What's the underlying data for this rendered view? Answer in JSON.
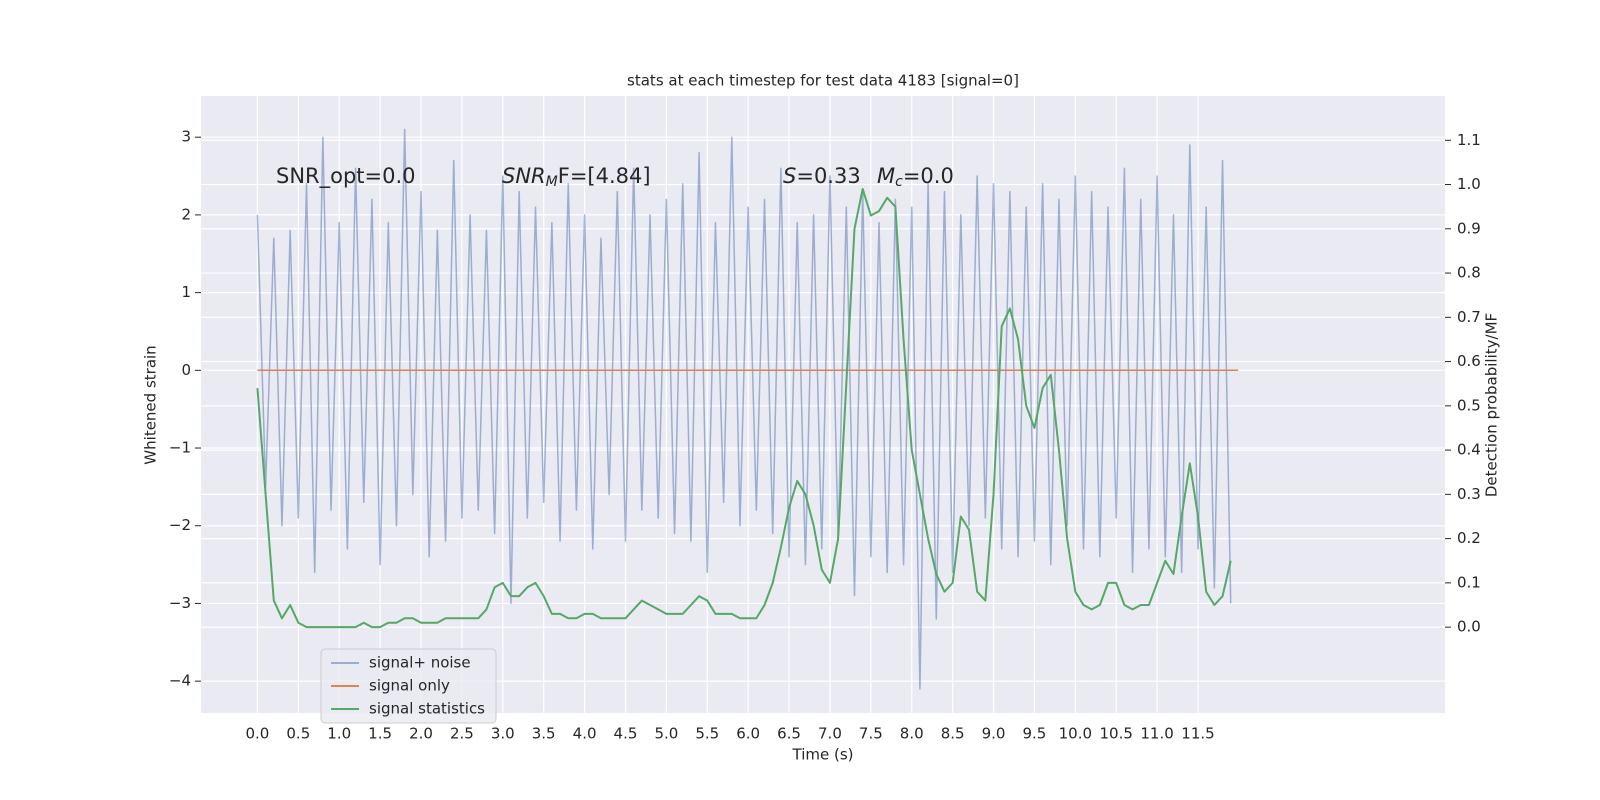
{
  "chart_data": {
    "type": "line",
    "title": "stats at each timestep for test data 4183 [signal=0]",
    "xlabel": "Time (s)",
    "ylabel": "Whitened strain",
    "y2label": "Detection probability/MF",
    "background": "#eaeaf2",
    "grid": true,
    "legend": "lower left",
    "xlim": [
      -0.69,
      14.52
    ],
    "ylim": [
      -4.41,
      3.53
    ],
    "y2lim": [
      -0.194,
      1.2
    ],
    "xticks": [
      {
        "value": 0,
        "label": "0.0"
      },
      0.5,
      {
        "value": 1,
        "label": "1.0"
      },
      1.5,
      {
        "value": 2,
        "label": "2.0"
      },
      2.5,
      {
        "value": 3,
        "label": "3.0"
      },
      3.5,
      {
        "value": 4,
        "label": "4.0"
      },
      4.5,
      {
        "value": 5,
        "label": "5.0"
      },
      5.5,
      {
        "value": 6,
        "label": "6.0"
      },
      6.5,
      {
        "value": 7,
        "label": "7.0"
      },
      7.5,
      {
        "value": 8,
        "label": "8.0"
      },
      8.5,
      {
        "value": 9,
        "label": "9.0"
      },
      9.5,
      {
        "value": 10,
        "label": "10.0"
      },
      10.5,
      {
        "value": 11,
        "label": "11.0"
      },
      11.5
    ],
    "yticks": [
      {
        "value": -4,
        "label": "−4"
      },
      {
        "value": -3,
        "label": "−3"
      },
      {
        "value": -2,
        "label": "−2"
      },
      {
        "value": -1,
        "label": "−1"
      },
      0,
      1,
      2,
      3
    ],
    "y2ticks": [
      {
        "value": 0,
        "label": "0.0"
      },
      0.1,
      0.2,
      0.3,
      0.4,
      0.5,
      0.6,
      0.7,
      0.8,
      0.9,
      {
        "value": 1,
        "label": "1.0"
      },
      1.1
    ],
    "annotations": [
      {
        "parts": [
          {
            "text": "SNR_opt=0.0"
          }
        ]
      },
      {
        "parts": [
          {
            "text": "SNR",
            "italic": true
          },
          {
            "text": "M",
            "italic": true,
            "sub": true
          },
          {
            "text": "F=[4.84]"
          }
        ]
      },
      {
        "parts": [
          {
            "text": "S",
            "italic": true
          },
          {
            "text": "=0.33"
          }
        ]
      },
      {
        "parts": [
          {
            "text": "M",
            "italic": true
          },
          {
            "text": "c",
            "italic": true,
            "sub": true
          },
          {
            "text": "=0.0"
          }
        ]
      }
    ],
    "x": [
      0.0,
      0.1,
      0.2,
      0.3,
      0.4,
      0.5,
      0.6,
      0.7,
      0.8,
      0.9,
      1.0,
      1.1,
      1.2,
      1.3,
      1.4,
      1.5,
      1.6,
      1.7,
      1.8,
      1.9,
      2.0,
      2.1,
      2.2,
      2.3,
      2.4,
      2.5,
      2.6,
      2.7,
      2.8,
      2.9,
      3.0,
      3.1,
      3.2,
      3.3,
      3.4,
      3.5,
      3.6,
      3.7,
      3.8,
      3.9,
      4.0,
      4.1,
      4.2,
      4.3,
      4.4,
      4.5,
      4.6,
      4.7,
      4.8,
      4.9,
      5.0,
      5.1,
      5.2,
      5.3,
      5.4,
      5.5,
      5.6,
      5.7,
      5.8,
      5.9,
      6.0,
      6.1,
      6.2,
      6.3,
      6.4,
      6.5,
      6.6,
      6.7,
      6.8,
      6.9,
      7.0,
      7.1,
      7.2,
      7.3,
      7.4,
      7.5,
      7.6,
      7.7,
      7.8,
      7.9,
      8.0,
      8.1,
      8.2,
      8.3,
      8.4,
      8.5,
      8.6,
      8.7,
      8.8,
      8.9,
      9.0,
      9.1,
      9.2,
      9.3,
      9.4,
      9.5,
      9.6,
      9.7,
      9.8,
      9.9,
      10.0,
      10.1,
      10.2,
      10.3,
      10.4,
      10.5,
      10.6,
      10.7,
      10.8,
      10.9,
      11.0,
      11.1,
      11.2,
      11.3,
      11.4,
      11.5,
      11.6,
      11.7,
      11.8,
      11.9
    ],
    "series": [
      {
        "name": "signal+ noise",
        "color": "#4c72b0",
        "alpha": 0.5,
        "values": [
          2.0,
          -1.5,
          1.7,
          -2.0,
          1.8,
          -1.9,
          2.4,
          -2.6,
          3.0,
          -1.8,
          1.9,
          -2.3,
          2.6,
          -1.7,
          2.2,
          -2.5,
          1.9,
          -2.0,
          3.1,
          -1.6,
          2.3,
          -2.4,
          1.8,
          -2.2,
          2.7,
          -1.9,
          2.0,
          -1.8,
          1.8,
          -2.1,
          2.5,
          -3.0,
          2.3,
          -1.9,
          2.1,
          -1.7,
          1.9,
          -2.2,
          2.4,
          -1.8,
          2.0,
          -2.3,
          1.7,
          -1.6,
          2.3,
          -2.2,
          2.6,
          -1.8,
          2.0,
          -1.9,
          2.2,
          -2.1,
          2.4,
          -2.2,
          2.8,
          -2.6,
          1.9,
          -1.7,
          3.0,
          -2.0,
          2.1,
          -1.8,
          2.2,
          -2.1,
          2.6,
          -2.4,
          1.9,
          -2.5,
          2.0,
          -2.3,
          2.5,
          -2.2,
          2.1,
          -2.9,
          2.3,
          -2.4,
          1.9,
          -2.6,
          2.2,
          -2.5,
          2.1,
          -4.1,
          2.4,
          -3.2,
          2.3,
          -2.6,
          2.0,
          -2.0,
          2.5,
          -1.9,
          2.4,
          -2.3,
          2.3,
          -2.4,
          2.1,
          -2.2,
          2.4,
          -2.5,
          2.2,
          -2.0,
          2.5,
          -2.3,
          2.3,
          -2.4,
          2.1,
          -1.9,
          2.6,
          -2.6,
          2.2,
          -2.3,
          2.5,
          -2.4,
          2.0,
          -2.6,
          2.9,
          -2.3,
          2.1,
          -2.8,
          2.7,
          -3.0
        ]
      },
      {
        "name": "signal only",
        "color": "#dd8452",
        "x": [
          0.0,
          11.99
        ],
        "values": [
          0,
          0
        ]
      },
      {
        "name": "signal statistics",
        "color": "#55a868",
        "axis": "y2",
        "values": [
          0.54,
          0.3,
          0.06,
          0.02,
          0.05,
          0.01,
          0.0,
          0.0,
          0.0,
          0.0,
          0.0,
          0.0,
          0.0,
          0.01,
          0.0,
          0.0,
          0.01,
          0.01,
          0.02,
          0.02,
          0.01,
          0.01,
          0.01,
          0.02,
          0.02,
          0.02,
          0.02,
          0.02,
          0.04,
          0.09,
          0.1,
          0.07,
          0.07,
          0.09,
          0.1,
          0.07,
          0.03,
          0.03,
          0.02,
          0.02,
          0.03,
          0.03,
          0.02,
          0.02,
          0.02,
          0.02,
          0.04,
          0.06,
          0.05,
          0.04,
          0.03,
          0.03,
          0.03,
          0.05,
          0.07,
          0.06,
          0.03,
          0.03,
          0.03,
          0.02,
          0.02,
          0.02,
          0.05,
          0.1,
          0.18,
          0.27,
          0.33,
          0.3,
          0.23,
          0.13,
          0.1,
          0.2,
          0.55,
          0.9,
          0.99,
          0.93,
          0.94,
          0.97,
          0.95,
          0.65,
          0.4,
          0.3,
          0.2,
          0.12,
          0.08,
          0.1,
          0.25,
          0.22,
          0.08,
          0.06,
          0.3,
          0.68,
          0.72,
          0.65,
          0.5,
          0.45,
          0.54,
          0.57,
          0.4,
          0.2,
          0.08,
          0.05,
          0.04,
          0.05,
          0.1,
          0.1,
          0.05,
          0.04,
          0.05,
          0.05,
          0.1,
          0.15,
          0.12,
          0.25,
          0.37,
          0.25,
          0.08,
          0.05,
          0.07,
          0.15
        ]
      }
    ]
  }
}
